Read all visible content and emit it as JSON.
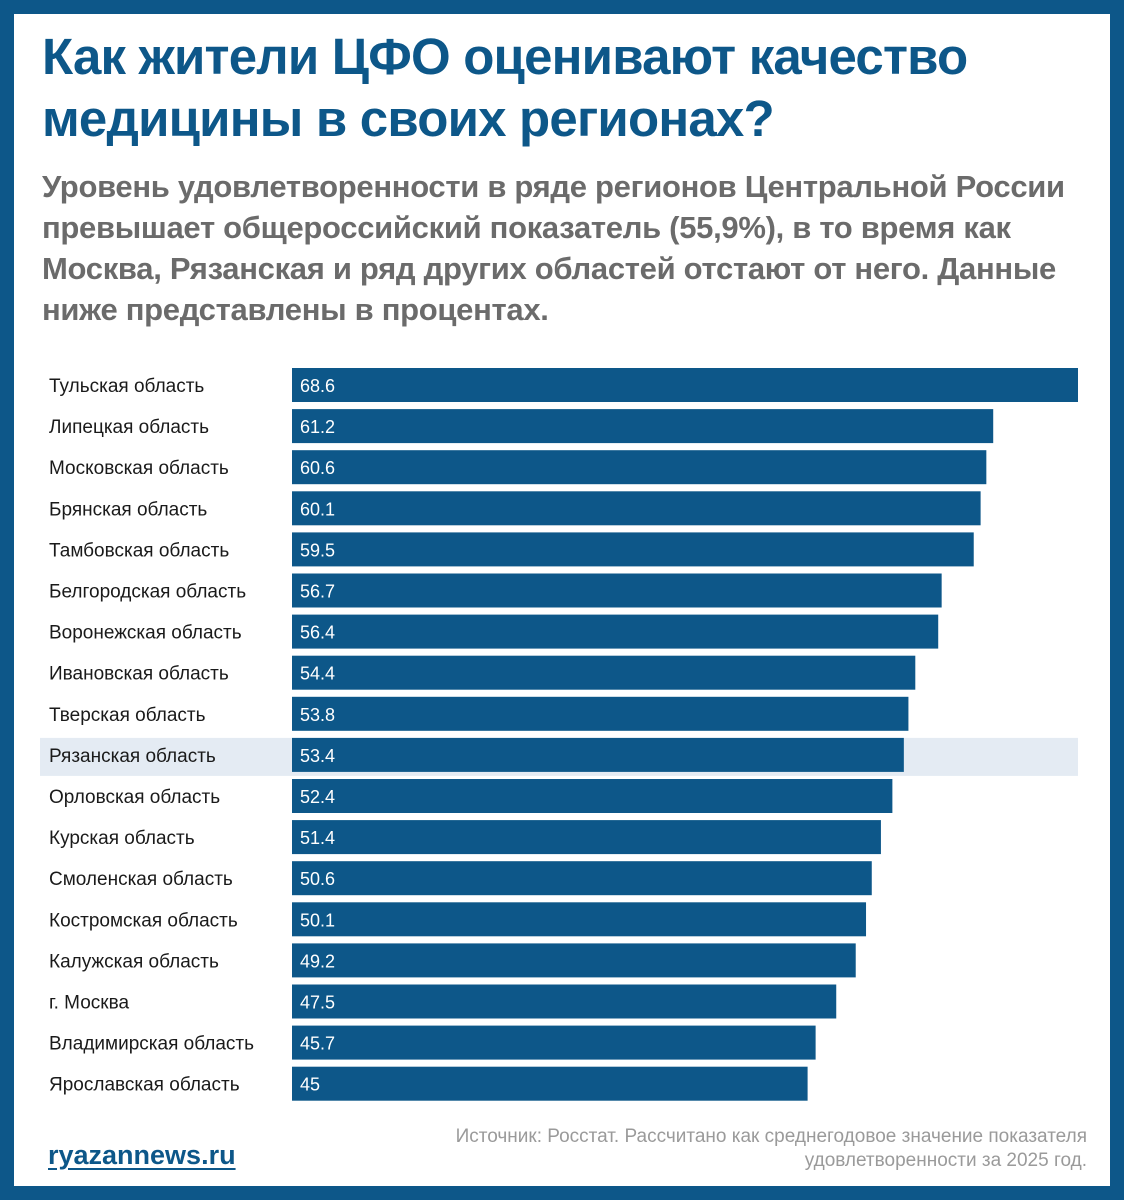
{
  "header": {
    "title": "Как жители ЦФО оценивают качество медицины в своих регионах?",
    "subtitle": "Уровень удовлетворенности в ряде регионов Центральной России превышает общероссийский показатель (55,9%), в то время как Москва, Рязанская и ряд других областей отстают от него. Данные ниже представлены в процентах."
  },
  "chart_data": {
    "type": "bar",
    "orientation": "horizontal",
    "title": "Как жители ЦФО оценивают качество медицины в своих регионах?",
    "xlabel": "",
    "ylabel": "",
    "xlim": [
      0,
      68.6
    ],
    "grid": false,
    "bar_color": "#0d5789",
    "highlight_color": "#e4ebf3",
    "highlight_category": "Рязанская область",
    "categories": [
      "Тульская область",
      "Липецкая область",
      "Московская область",
      "Брянская область",
      "Тамбовская область",
      "Белгородская область",
      "Воронежская область",
      "Ивановская область",
      "Тверская область",
      "Рязанская область",
      "Орловская область",
      "Курская область",
      "Смоленская область",
      "Костромская область",
      "Калужская область",
      "г. Москва",
      "Владимирская область",
      "Ярославская область"
    ],
    "values": [
      68.6,
      61.2,
      60.6,
      60.1,
      59.5,
      56.7,
      56.4,
      54.4,
      53.8,
      53.4,
      52.4,
      51.4,
      50.6,
      50.1,
      49.2,
      47.5,
      45.7,
      45
    ],
    "value_labels": [
      "68.6",
      "61.2",
      "60.6",
      "60.1",
      "59.5",
      "56.7",
      "56.4",
      "54.4",
      "53.8",
      "53.4",
      "52.4",
      "51.4",
      "50.6",
      "50.1",
      "49.2",
      "47.5",
      "45.7",
      "45"
    ]
  },
  "footer": {
    "site": "ryazannews.ru",
    "source": "Источник: Росстат. Рассчитано как среднегодовое значение показателя удовлетворенности за 2025 год."
  },
  "colors": {
    "brand": "#0d5789",
    "subtitle": "#6b6b6b",
    "source": "#9a9a9a"
  }
}
